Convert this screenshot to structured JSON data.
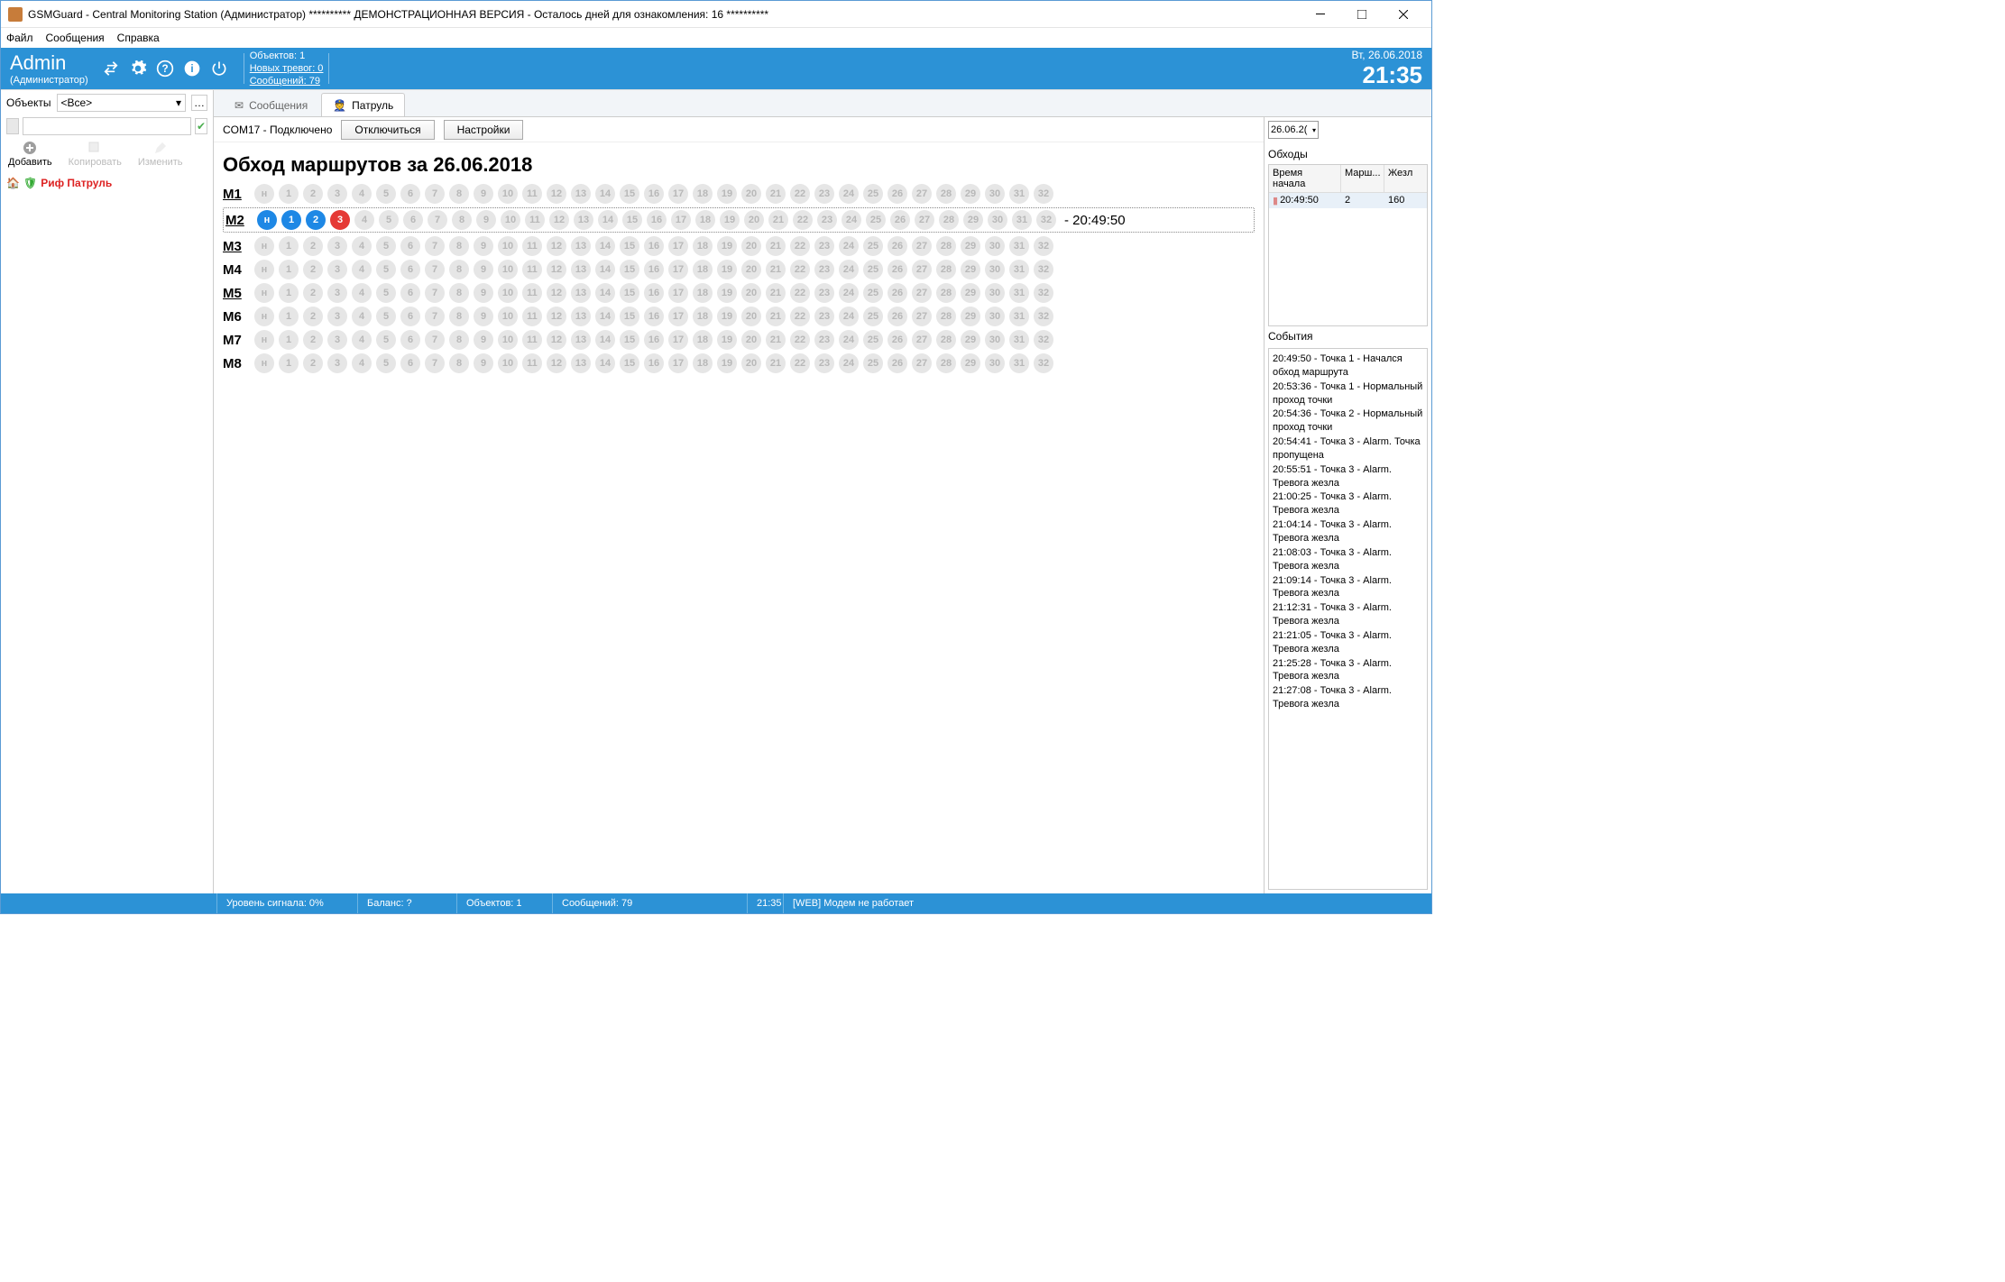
{
  "window": {
    "title": "GSMGuard - Central Monitoring Station (Администратор) ********** ДЕМОНСТРАЦИОННАЯ ВЕРСИЯ - Осталось дней для ознакомления: 16 **********"
  },
  "menu": {
    "file": "Файл",
    "messages": "Сообщения",
    "help": "Справка"
  },
  "header": {
    "admin": "Admin",
    "role": "(Администратор)",
    "objects_lbl": "Объектов:  1",
    "new_alarms": "Новых тревог: 0",
    "msgs": "Сообщений:  79",
    "date": "Вт, 26.06.2018",
    "time": "21:35"
  },
  "sidebar": {
    "objects_lbl": "Объекты",
    "select_value": "<Все>",
    "add": "Добавить",
    "copy": "Копировать",
    "edit": "Изменить",
    "tree_item": "Риф Патруль"
  },
  "tabs": {
    "messages": "Сообщения",
    "patrol": "Патруль"
  },
  "conn": {
    "status": "COM17 - Подключено",
    "disconnect": "Отключиться",
    "settings": "Настройки"
  },
  "routes": {
    "heading": "Обход маршрутов за 26.06.2018",
    "dot_inactive_bg": "#e6e6e6",
    "dot_inactive_fg": "#b8b8b8",
    "dot_blue_bg": "#1e88e5",
    "dot_blue_fg": "#ffffff",
    "dot_red_bg": "#e53935",
    "dot_red_fg": "#ffffff",
    "rows": [
      {
        "label": "M1",
        "underline": true,
        "count": 32,
        "active": [],
        "red": []
      },
      {
        "label": "M2",
        "underline": true,
        "count": 32,
        "active": [
          "н",
          "1",
          "2"
        ],
        "red": [
          "3"
        ],
        "time": "- 20:49:50",
        "highlight": true
      },
      {
        "label": "M3",
        "underline": true,
        "count": 32,
        "active": [],
        "red": []
      },
      {
        "label": "M4",
        "underline": false,
        "count": 32,
        "active": [],
        "red": []
      },
      {
        "label": "M5",
        "underline": true,
        "count": 32,
        "active": [],
        "red": []
      },
      {
        "label": "M6",
        "underline": false,
        "count": 32,
        "active": [],
        "red": []
      },
      {
        "label": "M7",
        "underline": false,
        "count": 32,
        "active": [],
        "red": []
      },
      {
        "label": "M8",
        "underline": false,
        "count": 32,
        "active": [],
        "red": []
      }
    ]
  },
  "right": {
    "date": "26.06.2(",
    "section1": "Обходы",
    "cols": {
      "c1": "Время начала",
      "c2": "Марш...",
      "c3": "Жезл"
    },
    "row": {
      "c1": "20:49:50",
      "c2": "2",
      "c3": "160"
    },
    "section2": "События",
    "events": [
      "20:49:50 - Точка 1 - Начался обход маршрута",
      "20:53:36 - Точка 1 - Нормальный проход точки",
      "20:54:36 - Точка 2 - Нормальный проход точки",
      "20:54:41 - Точка 3 - Alarm. Точка пропущена",
      "20:55:51 - Точка 3 - Alarm. Тревога жезла",
      "21:00:25 - Точка 3 - Alarm. Тревога жезла",
      "21:04:14 - Точка 3 - Alarm. Тревога жезла",
      "21:08:03 - Точка 3 - Alarm. Тревога жезла",
      "21:09:14 - Точка 3 - Alarm. Тревога жезла",
      "21:12:31 - Точка 3 - Alarm. Тревога жезла",
      "21:21:05 - Точка 3 - Alarm. Тревога жезла",
      "21:25:28 - Точка 3 - Alarm. Тревога жезла",
      "21:27:08 - Точка 3 - Alarm. Тревога жезла"
    ]
  },
  "status": {
    "signal": "Уровень сигнала:  0%",
    "balance": "Баланс:  ?",
    "objects": "Объектов:  1",
    "messages": "Сообщений:  79",
    "time": "21:35",
    "modem": "[WEB] Модем не работает"
  }
}
